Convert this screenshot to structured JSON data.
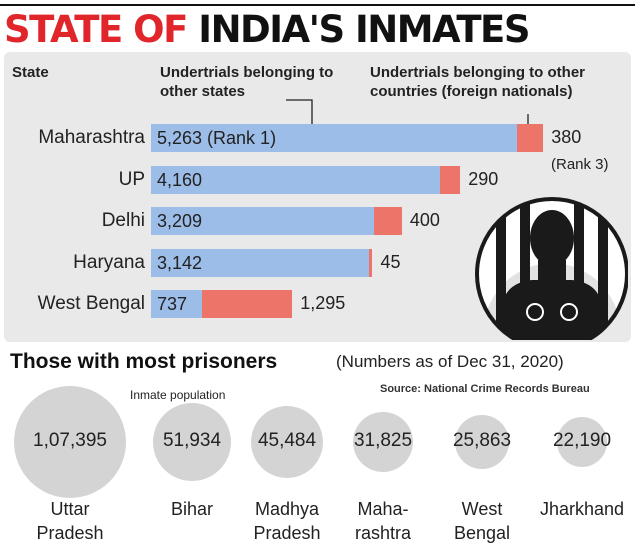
{
  "title": {
    "part1": "STATE OF",
    "part2": "INDIA'S INMATES"
  },
  "chart_data": [
    {
      "type": "bar",
      "stacked": true,
      "orientation": "horizontal",
      "headers": {
        "state": "State",
        "other_states": "Undertrials belonging to other states",
        "other_countries": "Undertrials belonging to other countries (foreign nationals)"
      },
      "categories": [
        "Maharashtra",
        "UP",
        "Delhi",
        "Haryana",
        "West Bengal"
      ],
      "series": [
        {
          "name": "Undertrials belonging to other states",
          "color": "#9dbde9",
          "values": [
            5263,
            4160,
            3209,
            3142,
            737
          ],
          "labels": [
            "5,263 (Rank 1)",
            "4,160",
            "3,209",
            "3,142",
            "737"
          ]
        },
        {
          "name": "Undertrials belonging to other countries (foreign nationals)",
          "color": "#ec7468",
          "values": [
            380,
            290,
            400,
            45,
            1295
          ],
          "labels": [
            "380",
            "290",
            "400",
            "45",
            "1,295"
          ]
        }
      ],
      "annotations": {
        "maharashtra_foreign_rank": "(Rank 3)"
      }
    },
    {
      "type": "bubble",
      "title": "Those with most prisoners",
      "subtitle": "(Numbers as of Dec 31, 2020)",
      "source": "Source: National Crime Records Bureau",
      "annotation": "Inmate population",
      "categories": [
        "Uttar Pradesh",
        "Bihar",
        "Madhya Pradesh",
        "Maharashtra",
        "West Bengal",
        "Jharkhand"
      ],
      "values": [
        107395,
        51934,
        45484,
        31825,
        25863,
        22190
      ],
      "value_labels": [
        "1,07,395",
        "51,934",
        "45,484",
        "31,825",
        "25,863",
        "22,190"
      ],
      "display_names": [
        [
          "Uttar",
          "Pradesh"
        ],
        [
          "Bihar"
        ],
        [
          "Madhya",
          "Pradesh"
        ],
        [
          "Maha-",
          "rashtra"
        ],
        [
          "West",
          "Bengal"
        ],
        [
          "Jharkhand"
        ]
      ]
    }
  ],
  "colors": {
    "title_red": "#e0262b",
    "panel_bg": "#e9e9e9",
    "bubble": "#d4d4d4"
  }
}
